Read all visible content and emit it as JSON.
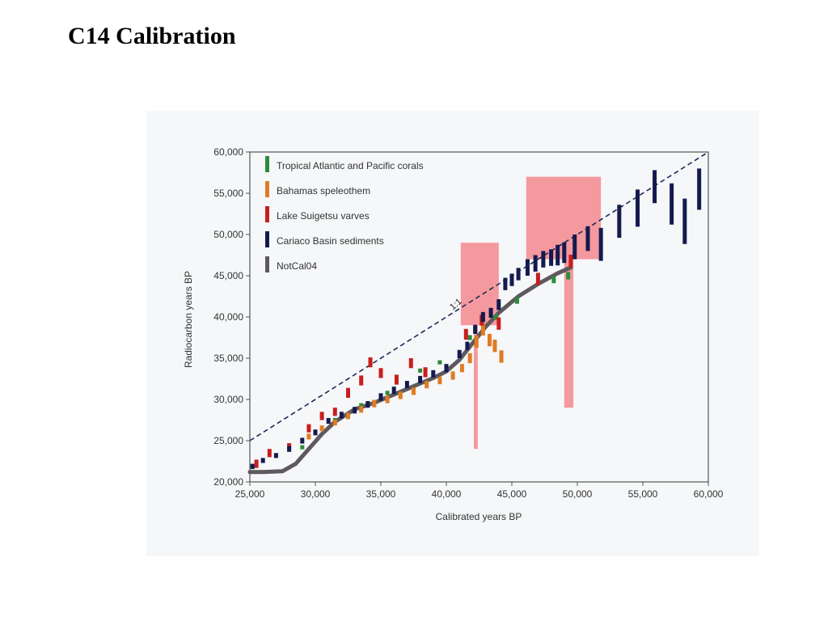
{
  "slide": {
    "title": "C14 Calibration"
  },
  "colors": {
    "corals": "#2e8b3a",
    "speleothem": "#e07b22",
    "suigetsu": "#c81e1e",
    "cariaco": "#141a4e",
    "notcal": "#5f585e",
    "highlight": "#f4999e",
    "oneToOne": "#1e2a55",
    "panel": "#f5f7f9"
  },
  "chart_data": {
    "type": "scatter",
    "xlabel": "Calibrated years BP",
    "ylabel": "Radiocarbon years BP",
    "xlim": [
      25000,
      60000
    ],
    "ylim": [
      20000,
      60000
    ],
    "xticks": [
      25000,
      30000,
      35000,
      40000,
      45000,
      50000,
      55000,
      60000
    ],
    "yticks": [
      20000,
      25000,
      30000,
      35000,
      40000,
      45000,
      50000,
      55000,
      60000
    ],
    "xtick_labels": [
      "25,000",
      "30,000",
      "35,000",
      "40,000",
      "45,000",
      "50,000",
      "55,000",
      "60,000"
    ],
    "ytick_labels": [
      "20,000",
      "25,000",
      "30,000",
      "35,000",
      "40,000",
      "45,000",
      "50,000",
      "55,000",
      "60,000"
    ],
    "grid": false,
    "legend_position": "top-left",
    "annotations": [
      {
        "text": "1:1",
        "x": 40500,
        "y": 40800
      }
    ],
    "reference_line": {
      "label": "1:1",
      "from": [
        25000,
        25000
      ],
      "to": [
        60000,
        60000
      ]
    },
    "highlight_regions": [
      {
        "x": [
          41100,
          44000
        ],
        "y": [
          39000,
          49000
        ]
      },
      {
        "x": [
          42100,
          42400
        ],
        "y": [
          24000,
          39000
        ]
      },
      {
        "x": [
          46100,
          51800
        ],
        "y": [
          47000,
          57000
        ]
      },
      {
        "x": [
          49000,
          49700
        ],
        "y": [
          29000,
          47000
        ]
      }
    ],
    "series": [
      {
        "name": "Tropical Atlantic and Pacific corals",
        "color": "#2e8b3a",
        "points": [
          [
            25200,
            21800,
            500
          ],
          [
            29000,
            24200,
            500
          ],
          [
            31500,
            27500,
            500
          ],
          [
            33500,
            29300,
            500
          ],
          [
            35500,
            30800,
            500
          ],
          [
            38000,
            33500,
            500
          ],
          [
            39500,
            34500,
            500
          ],
          [
            41800,
            37500,
            600
          ],
          [
            43800,
            40000,
            700
          ],
          [
            45400,
            42000,
            800
          ],
          [
            48200,
            44500,
            800
          ],
          [
            49300,
            45000,
            900
          ]
        ]
      },
      {
        "name": "Bahamas speleothem",
        "color": "#e07b22",
        "points": [
          [
            29500,
            25500,
            700
          ],
          [
            30500,
            26500,
            700
          ],
          [
            31500,
            27200,
            700
          ],
          [
            32500,
            28000,
            800
          ],
          [
            33500,
            28800,
            800
          ],
          [
            34500,
            29500,
            900
          ],
          [
            35500,
            30000,
            900
          ],
          [
            36500,
            30500,
            900
          ],
          [
            37500,
            31000,
            900
          ],
          [
            38500,
            31800,
            900
          ],
          [
            39500,
            32300,
            900
          ],
          [
            40500,
            32900,
            1000
          ],
          [
            41200,
            33800,
            1000
          ],
          [
            41800,
            35000,
            1200
          ],
          [
            42300,
            37000,
            1500
          ],
          [
            42800,
            38500,
            1500
          ],
          [
            43300,
            37200,
            1500
          ],
          [
            43700,
            36500,
            1500
          ],
          [
            44200,
            35200,
            1500
          ]
        ]
      },
      {
        "name": "Lake Suigetsu varves",
        "color": "#c81e1e",
        "points": [
          [
            25500,
            22200,
            1000
          ],
          [
            26500,
            23500,
            1000
          ],
          [
            28000,
            24200,
            1000
          ],
          [
            29500,
            26500,
            1000
          ],
          [
            30500,
            28000,
            1000
          ],
          [
            31500,
            28500,
            1000
          ],
          [
            32500,
            30800,
            1200
          ],
          [
            33500,
            32300,
            1200
          ],
          [
            34200,
            34500,
            1200
          ],
          [
            35000,
            33200,
            1200
          ],
          [
            36200,
            32400,
            1200
          ],
          [
            37300,
            34400,
            1200
          ],
          [
            38400,
            33300,
            1200
          ],
          [
            41500,
            37900,
            1300
          ],
          [
            42700,
            39600,
            1300
          ],
          [
            44000,
            39200,
            1500
          ],
          [
            47000,
            44600,
            1500
          ],
          [
            49500,
            46800,
            1500
          ]
        ]
      },
      {
        "name": "Cariaco Basin sediments",
        "color": "#141a4e",
        "points": [
          [
            25200,
            21900,
            600
          ],
          [
            26000,
            22600,
            600
          ],
          [
            27000,
            23200,
            600
          ],
          [
            28000,
            24000,
            700
          ],
          [
            29000,
            25000,
            700
          ],
          [
            30000,
            26000,
            700
          ],
          [
            31000,
            27400,
            700
          ],
          [
            32000,
            28100,
            800
          ],
          [
            33000,
            28700,
            800
          ],
          [
            34000,
            29400,
            800
          ],
          [
            35000,
            30300,
            900
          ],
          [
            36000,
            31100,
            900
          ],
          [
            37000,
            31800,
            900
          ],
          [
            38000,
            32400,
            900
          ],
          [
            39000,
            33100,
            900
          ],
          [
            40000,
            33800,
            1000
          ],
          [
            41000,
            35500,
            1000
          ],
          [
            41600,
            36500,
            1000
          ],
          [
            42200,
            38500,
            1100
          ],
          [
            42800,
            40000,
            1200
          ],
          [
            43400,
            40500,
            1200
          ],
          [
            44000,
            41500,
            1300
          ],
          [
            44500,
            44000,
            1500
          ],
          [
            45000,
            44500,
            1500
          ],
          [
            45500,
            45200,
            1500
          ],
          [
            46200,
            46000,
            2000
          ],
          [
            46800,
            46500,
            2000
          ],
          [
            47400,
            47000,
            2000
          ],
          [
            48000,
            47200,
            2000
          ],
          [
            48500,
            47500,
            2500
          ],
          [
            49000,
            47800,
            2500
          ],
          [
            49800,
            48500,
            3000
          ],
          [
            50800,
            49500,
            3000
          ],
          [
            51800,
            48800,
            4000
          ],
          [
            53200,
            51600,
            4000
          ],
          [
            54600,
            53200,
            4500
          ],
          [
            55900,
            55800,
            4000
          ],
          [
            57200,
            53700,
            5000
          ],
          [
            58200,
            51600,
            5500
          ],
          [
            59300,
            55500,
            5000
          ]
        ]
      },
      {
        "name": "NotCal04",
        "color": "#5f585e",
        "line": [
          [
            25000,
            21200
          ],
          [
            26000,
            21200
          ],
          [
            27500,
            21300
          ],
          [
            28500,
            22200
          ],
          [
            29500,
            24000
          ],
          [
            30500,
            25800
          ],
          [
            31500,
            27300
          ],
          [
            33000,
            28800
          ],
          [
            34500,
            29600
          ],
          [
            36000,
            30600
          ],
          [
            37500,
            31600
          ],
          [
            39000,
            32600
          ],
          [
            40000,
            33400
          ],
          [
            41000,
            34800
          ],
          [
            42000,
            36800
          ],
          [
            43000,
            38800
          ],
          [
            44000,
            40500
          ],
          [
            45500,
            42500
          ],
          [
            47000,
            44000
          ],
          [
            48500,
            45300
          ],
          [
            49500,
            46000
          ]
        ]
      }
    ]
  }
}
